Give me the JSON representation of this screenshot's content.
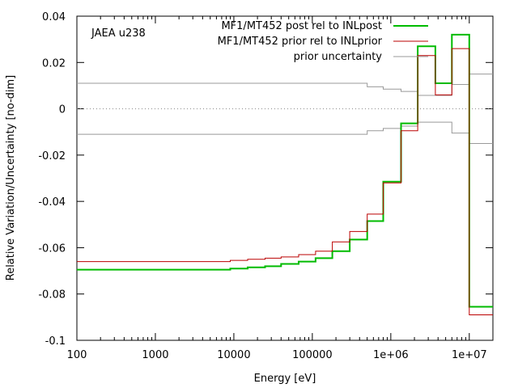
{
  "chart_data": {
    "type": "line",
    "title": "",
    "annotation": "JAEA u238",
    "xlabel": "Energy [eV]",
    "ylabel": "Relative Variation/Uncertainty [no-dim]",
    "xscale": "log",
    "xlim": [
      100,
      20000000
    ],
    "ylim": [
      -0.1,
      0.04
    ],
    "xticks": [
      {
        "value": 100,
        "label": "100"
      },
      {
        "value": 1000,
        "label": "1000"
      },
      {
        "value": 10000,
        "label": "10000"
      },
      {
        "value": 100000,
        "label": "100000"
      },
      {
        "value": 1000000,
        "label": "1e+06"
      },
      {
        "value": 10000000,
        "label": "1e+07"
      }
    ],
    "yticks": [
      {
        "value": 0.04,
        "label": "0.04"
      },
      {
        "value": 0.02,
        "label": "0.02"
      },
      {
        "value": 0,
        "label": "0"
      },
      {
        "value": -0.02,
        "label": "-0.02"
      },
      {
        "value": -0.04,
        "label": "-0.04"
      },
      {
        "value": -0.06,
        "label": "-0.06"
      },
      {
        "value": -0.08,
        "label": "-0.08"
      },
      {
        "value": -0.1,
        "label": "-0.1"
      }
    ],
    "zero_line": "dotted",
    "legend_position": "top-right",
    "edges": [
      100,
      9000,
      15000,
      25000,
      40000,
      67000,
      110000,
      180000,
      300000,
      500000,
      800000,
      1350000,
      2200000,
      3700000,
      6000000,
      10000000,
      20000000
    ],
    "series": [
      {
        "name": "MF1/MT452 post rel to INLpost",
        "color": "#00bb00",
        "style": "step",
        "values": [
          -0.0695,
          -0.069,
          -0.0685,
          -0.068,
          -0.067,
          -0.066,
          -0.0645,
          -0.0615,
          -0.0565,
          -0.0485,
          -0.0315,
          -0.0063,
          0.027,
          0.011,
          0.032,
          -0.0855
        ]
      },
      {
        "name": "MF1/MT452 prior rel to INLprior",
        "color": "#bb0000",
        "style": "step",
        "values": [
          -0.066,
          -0.0655,
          -0.065,
          -0.0645,
          -0.064,
          -0.063,
          -0.0615,
          -0.0575,
          -0.053,
          -0.0455,
          -0.032,
          -0.0095,
          0.023,
          0.006,
          0.026,
          -0.089
        ]
      },
      {
        "name": "prior uncertainty",
        "color": "#999999",
        "style": "step-symmetric",
        "values": [
          0.011,
          0.011,
          0.011,
          0.011,
          0.011,
          0.011,
          0.011,
          0.011,
          0.011,
          0.0095,
          0.0085,
          0.0075,
          0.0058,
          0.0058,
          0.0105,
          0.015
        ]
      }
    ]
  }
}
